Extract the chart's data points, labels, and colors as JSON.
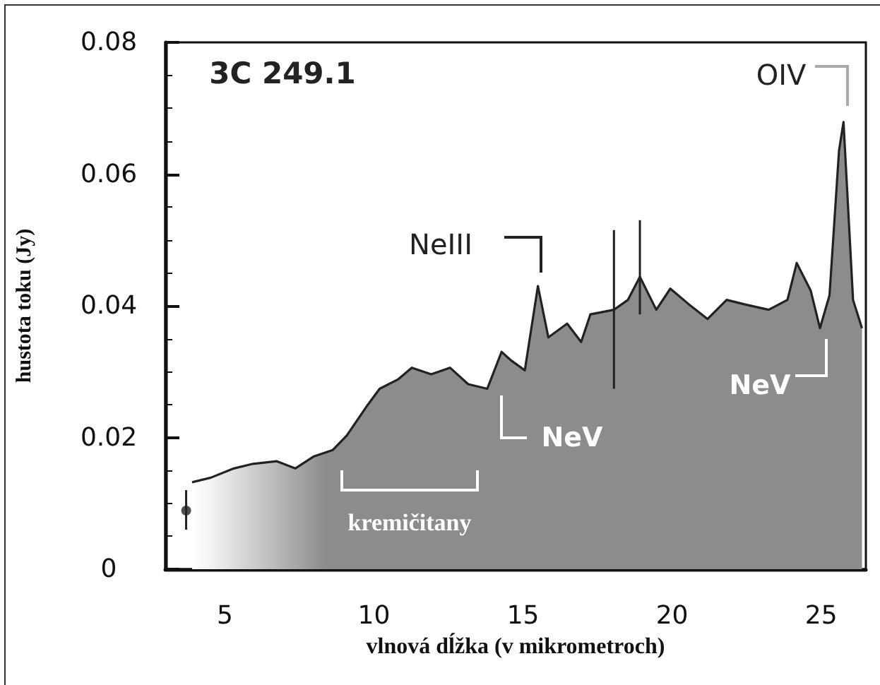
{
  "chart_data": {
    "type": "area",
    "xlabel": "vlnová dĺžka (v mikrometroch)",
    "ylabel": "hustota toku (Jy)",
    "xlim": [
      3,
      26.5
    ],
    "xticks": [
      5,
      10,
      15,
      20,
      25
    ],
    "ylim": [
      0,
      0.08
    ],
    "yticks": [
      0,
      0.02,
      0.04,
      0.06,
      0.08
    ],
    "series": [
      {
        "color": "#222222",
        "x": [
          3.9,
          4.53,
          5.3,
          5.94,
          6.73,
          7.36,
          7.97,
          8.62,
          9.09,
          9.72,
          10.19,
          10.8,
          11.27,
          11.92,
          12.55,
          13.16,
          13.8,
          14.28,
          14.6,
          15.06,
          15.5,
          15.85,
          16.48,
          16.95,
          17.26,
          18.05,
          18.52,
          18.92,
          19.47,
          19.94,
          20.57,
          21.19,
          21.83,
          22.45,
          23.24,
          23.87,
          24.18,
          24.65,
          24.96,
          25.28,
          25.6,
          25.75,
          26.07,
          26.37
        ],
        "values": [
          0.0132,
          0.0139,
          0.0153,
          0.016,
          0.0164,
          0.0153,
          0.0171,
          0.0181,
          0.0203,
          0.0245,
          0.0274,
          0.0288,
          0.0306,
          0.0296,
          0.0306,
          0.0281,
          0.0274,
          0.033,
          0.0317,
          0.0302,
          0.043,
          0.0352,
          0.0373,
          0.0345,
          0.0387,
          0.0394,
          0.0409,
          0.0444,
          0.0394,
          0.0426,
          0.0402,
          0.038,
          0.0409,
          0.0402,
          0.0394,
          0.0409,
          0.0465,
          0.0423,
          0.0366,
          0.0416,
          0.0636,
          0.0679,
          0.0409,
          0.0366
        ],
        "errors": [
          null,
          null,
          null,
          null,
          null,
          null,
          null,
          null,
          null,
          null,
          null,
          null,
          null,
          null,
          null,
          null,
          null,
          null,
          null,
          null,
          null,
          null,
          null,
          null,
          null,
          [
            0.0274,
            0.0515
          ],
          null,
          [
            0.0387,
            0.053
          ],
          null,
          null,
          null,
          null,
          null,
          null,
          null,
          null,
          null,
          null,
          null,
          null,
          null,
          null,
          null,
          null
        ]
      },
      {
        "type": "scatter",
        "color": "#222222",
        "x": [
          3.7
        ],
        "values": [
          0.0089
        ],
        "errors": [
          [
            0.006,
            0.012
          ]
        ]
      }
    ],
    "annotations": [
      "3C 249.1",
      "NeIII",
      "OIV",
      "NeV",
      "NeV",
      "kremičitany"
    ]
  }
}
